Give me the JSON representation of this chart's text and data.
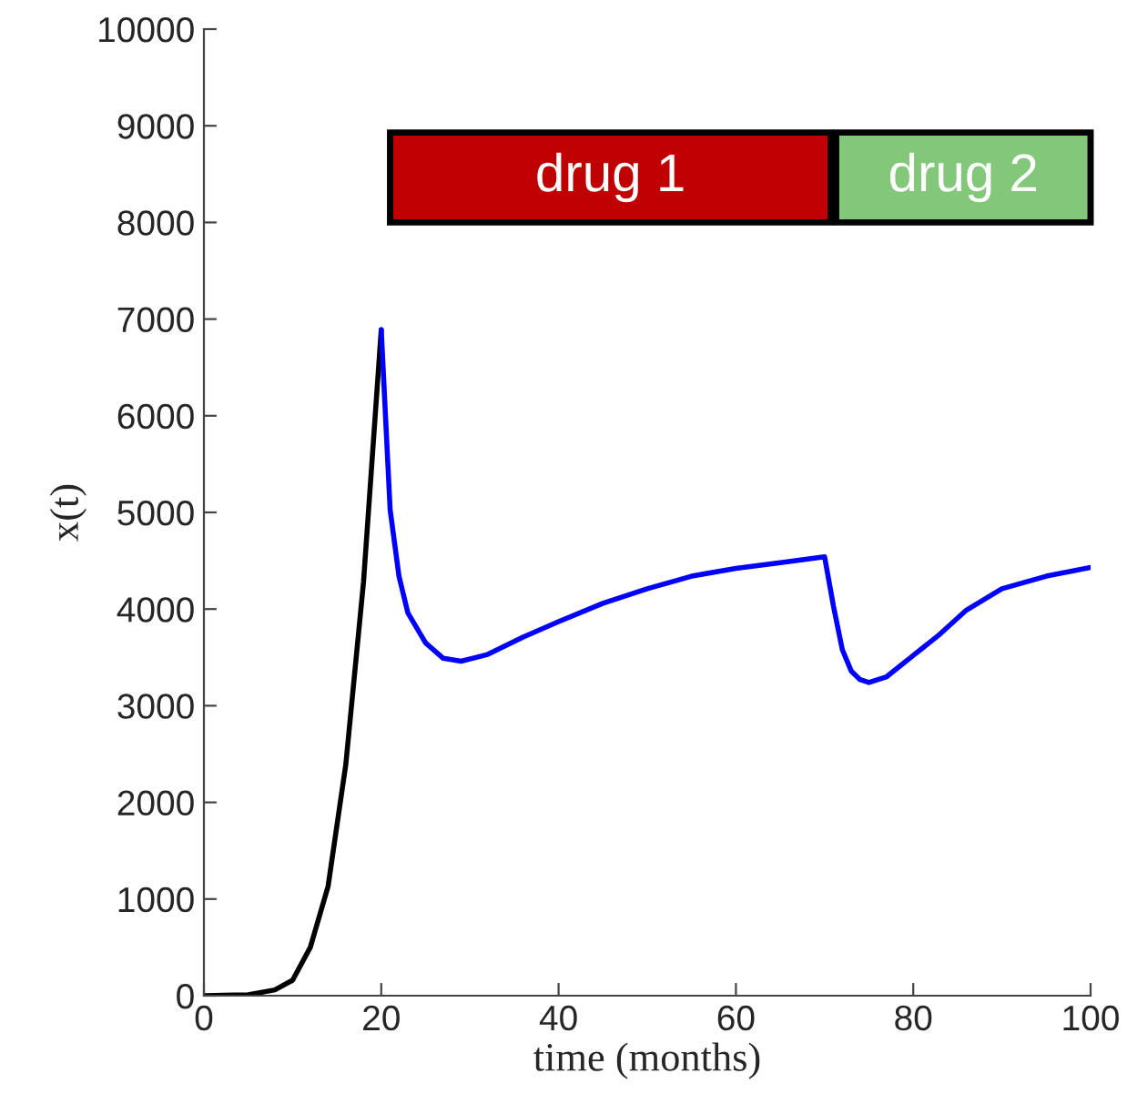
{
  "chart_data": {
    "type": "line",
    "xlabel": "time (months)",
    "ylabel": "x(t)",
    "xlim": [
      0,
      100
    ],
    "xticks": [
      0,
      20,
      40,
      60,
      80,
      100
    ],
    "ylim": [
      0,
      10000
    ],
    "yticks": [
      0,
      1000,
      2000,
      3000,
      4000,
      5000,
      6000,
      7000,
      8000,
      9000,
      10000
    ],
    "grid": false,
    "legend": false,
    "series": [
      {
        "color": "#000000",
        "x": [
          0,
          5,
          8,
          10,
          12,
          14,
          16,
          18,
          20
        ],
        "values": [
          0,
          10,
          60,
          160,
          500,
          1130,
          2390,
          4280,
          6890
        ]
      },
      {
        "color": "#0000ff",
        "x": [
          20,
          21,
          22,
          23,
          25,
          27,
          29,
          32,
          36,
          40,
          45,
          50,
          55,
          60,
          65,
          70,
          71,
          72,
          73,
          74,
          75,
          77,
          80,
          83,
          86,
          90,
          95,
          100
        ],
        "values": [
          6890,
          5030,
          4340,
          3960,
          3650,
          3490,
          3460,
          3530,
          3710,
          3870,
          4060,
          4210,
          4340,
          4420,
          4480,
          4540,
          4030,
          3580,
          3360,
          3270,
          3240,
          3300,
          3520,
          3740,
          3990,
          4210,
          4340,
          4430
        ]
      }
    ],
    "bands": [
      {
        "axis": "x",
        "from": 21,
        "to": 70.7,
        "label": "drug 1",
        "color": "#c00000"
      },
      {
        "axis": "x",
        "from": 71.3,
        "to": 100,
        "label": "drug 2",
        "color": "#82c77a"
      }
    ]
  }
}
